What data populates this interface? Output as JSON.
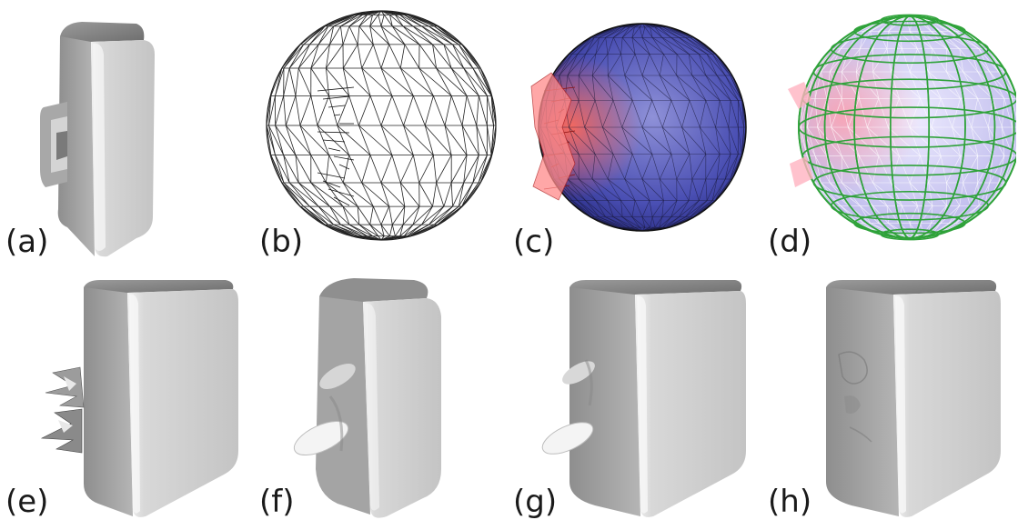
{
  "figure": {
    "panels": [
      {
        "id": "a",
        "label": "(a)"
      },
      {
        "id": "b",
        "label": "(b)"
      },
      {
        "id": "c",
        "label": "(c)"
      },
      {
        "id": "d",
        "label": "(d)"
      },
      {
        "id": "e",
        "label": "(e)"
      },
      {
        "id": "f",
        "label": "(f)"
      },
      {
        "id": "g",
        "label": "(g)"
      },
      {
        "id": "h",
        "label": "(h)"
      }
    ],
    "colors": {
      "shape_gray": "#b9b9b9",
      "wire_black": "#222222",
      "sphere_blue": "#4a4fb3",
      "hole_red": "#e0504e",
      "grid_green": "#2fa23a",
      "sphere_lavender": "#c9c6ef"
    }
  }
}
